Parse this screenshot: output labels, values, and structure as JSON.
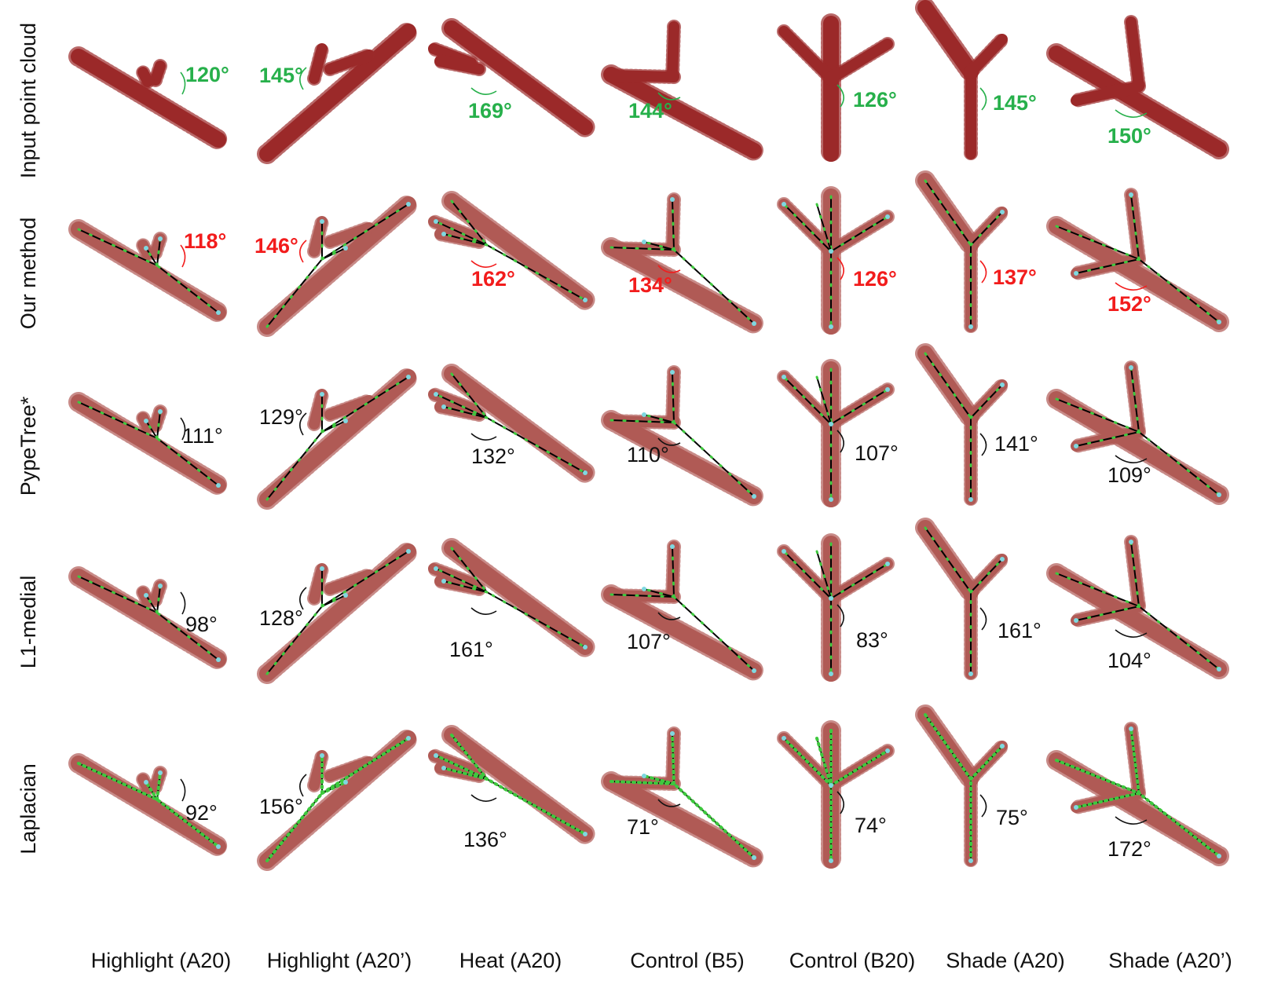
{
  "row_labels": [
    "Input point cloud",
    "Our method",
    "PypeTree*",
    "L1-medial",
    "Laplacian"
  ],
  "column_labels": [
    "Highlight (A20)",
    "Highlight (A20’)",
    "Heat (A20)",
    "Control (B5)",
    "Control (B20)",
    "Shade (A20)",
    "Shade (A20’)"
  ],
  "angles": [
    [
      "120°",
      "145°",
      "169°",
      "144°",
      "126°",
      "145°",
      "150°"
    ],
    [
      "118°",
      "146°",
      "162°",
      "134°",
      "126°",
      "137°",
      "152°"
    ],
    [
      "111°",
      "129°",
      "132°",
      "110°",
      "107°",
      "141°",
      "109°"
    ],
    [
      "98°",
      "128°",
      "161°",
      "107°",
      "83°",
      "161°",
      "104°"
    ],
    [
      "92°",
      "156°",
      "136°",
      "71°",
      "74°",
      "75°",
      "172°"
    ]
  ],
  "colors": {
    "point_cloud_dark": "#9b2a2a",
    "point_cloud_light": "#b05a55",
    "skeleton_line": "#000000",
    "skeleton_nodes": "#3ec83e",
    "endpoint_nodes": "#7fd8e0",
    "angle_input": "#27b04b",
    "angle_ours": "#f21c1c",
    "angle_other": "#111111"
  },
  "row_styles": [
    "input",
    "ours",
    "other",
    "other",
    "other"
  ]
}
